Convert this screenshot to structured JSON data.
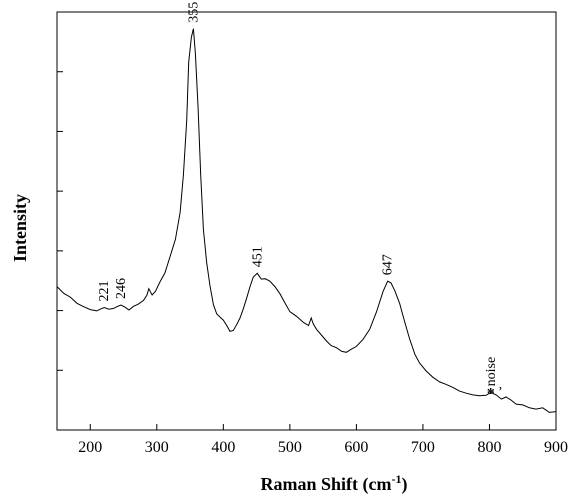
{
  "chart_data": {
    "type": "line",
    "title": "",
    "xlabel_main": "Raman Shift (cm",
    "xlabel_sup": "-1",
    "xlabel_close": ")",
    "ylabel": "Intensity",
    "xlim": [
      150,
      900
    ],
    "ylim": [
      0,
      1
    ],
    "x_ticks": [
      200,
      300,
      400,
      500,
      600,
      700,
      800,
      900
    ],
    "y_ticks_count": 6,
    "grid": false,
    "series": [
      {
        "color": "#000000",
        "x": [
          150,
          160,
          170,
          180,
          190,
          200,
          210,
          215,
          221,
          228,
          235,
          240,
          246,
          252,
          258,
          265,
          272,
          280,
          285,
          288,
          290,
          293,
          298,
          305,
          312,
          320,
          328,
          335,
          340,
          345,
          348,
          352,
          355,
          358,
          362,
          366,
          370,
          375,
          380,
          385,
          390,
          395,
          400,
          405,
          410,
          415,
          420,
          425,
          430,
          435,
          440,
          445,
          451,
          457,
          463,
          470,
          478,
          485,
          492,
          500,
          510,
          520,
          528,
          532,
          535,
          540,
          548,
          555,
          562,
          570,
          578,
          585,
          592,
          600,
          610,
          620,
          630,
          640,
          647,
          652,
          658,
          665,
          672,
          680,
          688,
          695,
          705,
          715,
          725,
          735,
          745,
          755,
          765,
          775,
          785,
          795,
          802,
          810,
          818,
          825,
          832,
          840,
          850,
          860,
          870,
          880,
          890,
          900
        ],
        "y": [
          0.343,
          0.327,
          0.318,
          0.303,
          0.295,
          0.288,
          0.285,
          0.289,
          0.293,
          0.289,
          0.291,
          0.295,
          0.299,
          0.294,
          0.287,
          0.296,
          0.301,
          0.31,
          0.322,
          0.338,
          0.332,
          0.323,
          0.332,
          0.355,
          0.375,
          0.415,
          0.456,
          0.52,
          0.61,
          0.74,
          0.88,
          0.94,
          0.96,
          0.9,
          0.77,
          0.61,
          0.48,
          0.4,
          0.345,
          0.3,
          0.278,
          0.27,
          0.263,
          0.25,
          0.236,
          0.238,
          0.252,
          0.268,
          0.29,
          0.315,
          0.342,
          0.366,
          0.375,
          0.361,
          0.362,
          0.356,
          0.342,
          0.326,
          0.306,
          0.283,
          0.272,
          0.258,
          0.25,
          0.268,
          0.254,
          0.241,
          0.226,
          0.213,
          0.202,
          0.197,
          0.188,
          0.186,
          0.193,
          0.2,
          0.217,
          0.241,
          0.282,
          0.331,
          0.356,
          0.352,
          0.332,
          0.303,
          0.262,
          0.218,
          0.181,
          0.16,
          0.141,
          0.126,
          0.115,
          0.109,
          0.102,
          0.093,
          0.088,
          0.084,
          0.082,
          0.083,
          0.09,
          0.084,
          0.074,
          0.079,
          0.072,
          0.062,
          0.06,
          0.053,
          0.05,
          0.053,
          0.042,
          0.044
        ]
      }
    ],
    "annotations": [
      {
        "text": "355",
        "x": 355,
        "y": 0.96
      },
      {
        "text": "221",
        "x": 221,
        "y": 0.293
      },
      {
        "text": "246",
        "x": 246,
        "y": 0.299
      },
      {
        "text": "451",
        "x": 451,
        "y": 0.375
      },
      {
        "text": "647",
        "x": 647,
        "y": 0.356
      },
      {
        "text": "noise",
        "x": 802,
        "y": 0.09
      }
    ],
    "marker_annotations": [
      {
        "text": "*",
        "x": 802,
        "y": 0.09
      },
      {
        "text": ",",
        "x": 802,
        "y": 0.09
      }
    ]
  }
}
